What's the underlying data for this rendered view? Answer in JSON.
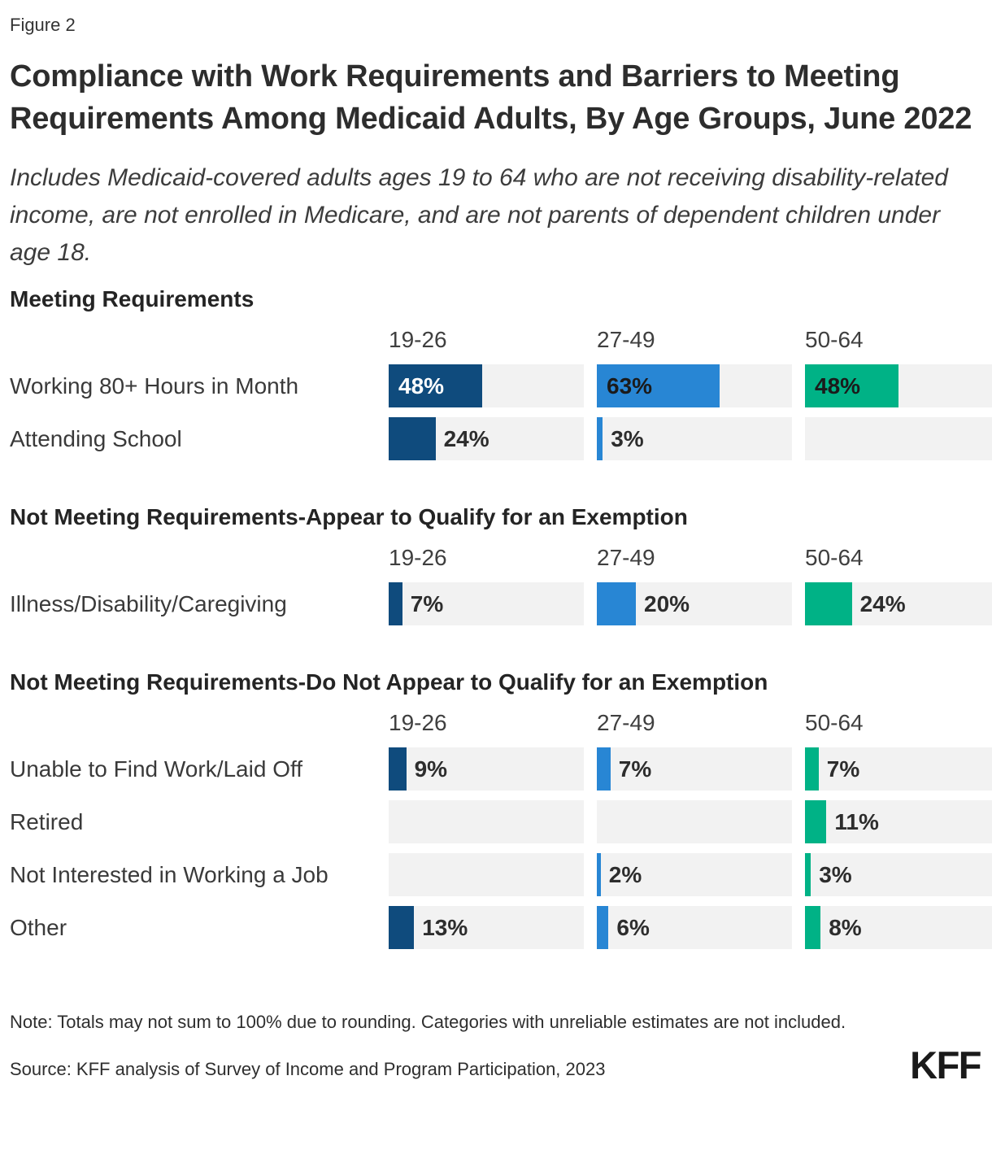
{
  "figure_label": "Figure 2",
  "title": "Compliance with Work Requirements and Barriers to Meeting Requirements Among Medicaid Adults, By Age Groups, June 2022",
  "subtitle": "Includes Medicaid-covered adults ages 19 to 64 who are not receiving disability-related income, are not enrolled in Medicare, and are not parents of dependent children under age 18.",
  "colors": {
    "age_19_26": "#0f4b7d",
    "age_27_49": "#2886d4",
    "age_50_64": "#00b286",
    "track": "#f2f2f2",
    "label_dark": "#2d2d2d",
    "label_light": "#ffffff"
  },
  "chart_data": {
    "type": "bar",
    "orientation": "horizontal",
    "value_format": "percent",
    "value_suffix": "%",
    "xlim": [
      0,
      100
    ],
    "age_groups": [
      "19-26",
      "27-49",
      "50-64"
    ],
    "series_colors": [
      "#0f4b7d",
      "#2886d4",
      "#00b286"
    ],
    "inside_label_colors": [
      "#ffffff",
      "#1b1b1b",
      "#1b1b1b"
    ],
    "sections": [
      {
        "title": "Meeting Requirements",
        "rows": [
          {
            "label": "Working 80+ Hours in Month",
            "values": [
              48,
              63,
              48
            ],
            "label_inside": true
          },
          {
            "label": "Attending School",
            "values": [
              24,
              3,
              null
            ],
            "label_inside": false
          }
        ]
      },
      {
        "title": "Not Meeting Requirements-Appear to Qualify for an Exemption",
        "rows": [
          {
            "label": "Illness/Disability/Caregiving",
            "values": [
              7,
              20,
              24
            ],
            "label_inside": false
          }
        ]
      },
      {
        "title": "Not Meeting Requirements-Do Not Appear to Qualify for an Exemption",
        "rows": [
          {
            "label": "Unable to Find Work/Laid Off",
            "values": [
              9,
              7,
              7
            ],
            "label_inside": false
          },
          {
            "label": "Retired",
            "values": [
              null,
              null,
              11
            ],
            "label_inside": false
          },
          {
            "label": "Not Interested in Working a Job",
            "values": [
              null,
              2,
              3
            ],
            "label_inside": false
          },
          {
            "label": "Other",
            "values": [
              13,
              6,
              8
            ],
            "label_inside": false
          }
        ]
      }
    ]
  },
  "note": "Note: Totals may not sum to 100% due to rounding. Categories with unreliable estimates are not included.",
  "source": "Source: KFF analysis of Survey of Income and Program Participation, 2023",
  "logo": "KFF"
}
